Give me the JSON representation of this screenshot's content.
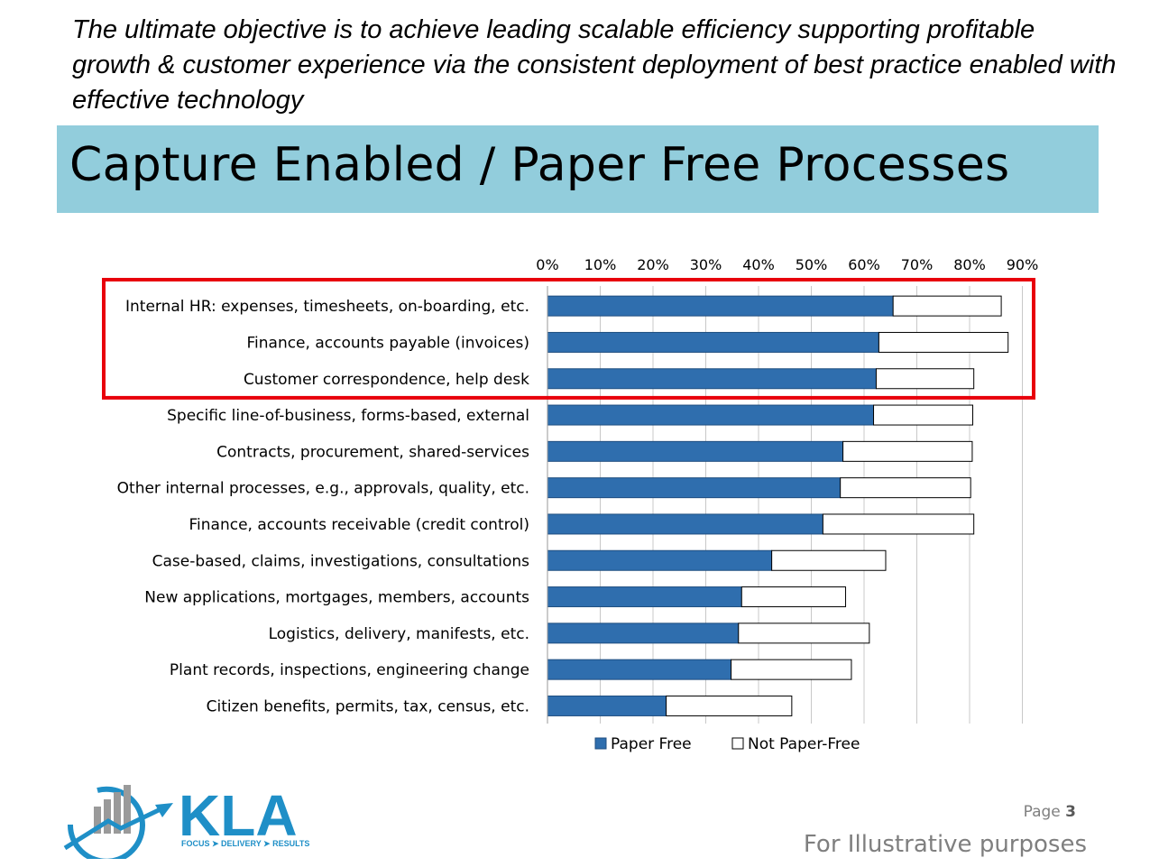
{
  "intro_text": "The ultimate objective is to achieve leading scalable efficiency supporting profitable growth & customer experience via the consistent deployment of best practice enabled with effective technology",
  "title": "Capture Enabled / Paper Free Processes",
  "chart_data": {
    "type": "bar",
    "orientation": "horizontal",
    "stacked": true,
    "categories": [
      "Internal HR: expenses, timesheets, on-boarding, etc.",
      "Finance, accounts payable (invoices)",
      "Customer correspondence, help desk",
      "Specific line-of-business, forms-based, external",
      "Contracts, procurement, shared-services",
      "Other internal processes, e.g., approvals, quality, etc.",
      "Finance, accounts receivable (credit control)",
      "Case-based, claims, investigations, consultations",
      "New applications, mortgages, members, accounts",
      "Logistics, delivery, manifests, etc.",
      "Plant records, inspections, engineering change",
      "Citizen benefits, permits, tax, census, etc."
    ],
    "series": [
      {
        "name": "Paper Free",
        "color": "#2f6eae",
        "values": [
          65.5,
          62.8,
          62.3,
          61.8,
          56.0,
          55.5,
          52.2,
          42.5,
          36.8,
          36.2,
          34.8,
          22.5
        ]
      },
      {
        "name": "Not Paper-Free",
        "color": "#ffffff",
        "values": [
          20.5,
          24.5,
          18.5,
          18.8,
          24.5,
          24.7,
          28.6,
          21.6,
          19.7,
          24.8,
          22.8,
          23.8
        ]
      }
    ],
    "xlim": [
      0,
      90
    ],
    "xticks": [
      "0%",
      "10%",
      "20%",
      "30%",
      "40%",
      "50%",
      "60%",
      "70%",
      "80%",
      "90%"
    ],
    "xaxis_position": "top",
    "grid": true,
    "legend_position": "bottom",
    "highlight": {
      "rows": [
        0,
        1,
        2
      ],
      "color": "#e8000b"
    }
  },
  "page": {
    "label": "Page",
    "number": "3"
  },
  "footer_note": "For Illustrative purposes",
  "logo": {
    "text": "KLA",
    "tagline": "FOCUS ➤ DELIVERY ➤ RESULTS",
    "color": "#1f8fc7"
  }
}
